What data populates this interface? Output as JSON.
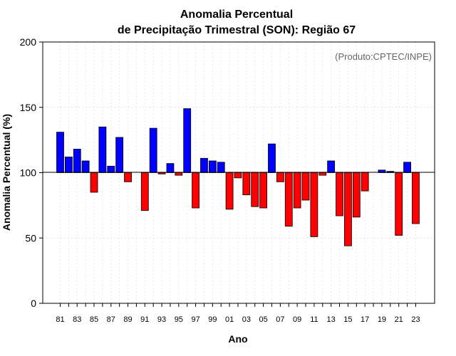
{
  "chart_data": {
    "type": "bar",
    "title_line1": "Anomalia Percentual",
    "title_line2": "de Precipitação Trimestral (SON): Região 67",
    "xlabel": "Ano",
    "ylabel": "Anomalia Percentual (%)",
    "credit": "(Produto:CPTEC/INPE)",
    "baseline": 100,
    "ylim": [
      0,
      200
    ],
    "yticks": [
      "0",
      "50",
      "100",
      "150",
      "200"
    ],
    "above_color": "#0000ff",
    "below_color": "#ff0000",
    "categories": [
      "81",
      "82",
      "83",
      "84",
      "85",
      "86",
      "87",
      "88",
      "89",
      "90",
      "91",
      "92",
      "93",
      "94",
      "95",
      "96",
      "97",
      "98",
      "99",
      "00",
      "01",
      "02",
      "03",
      "04",
      "05",
      "06",
      "07",
      "08",
      "09",
      "10",
      "11",
      "12",
      "13",
      "14",
      "15",
      "16",
      "17",
      "18",
      "19",
      "20",
      "21",
      "22",
      "23"
    ],
    "xtick_labels": [
      "81",
      "83",
      "85",
      "87",
      "89",
      "91",
      "93",
      "95",
      "97",
      "99",
      "01",
      "03",
      "05",
      "07",
      "09",
      "11",
      "13",
      "15",
      "17",
      "19",
      "21",
      "23"
    ],
    "values": [
      131,
      112,
      118,
      109,
      85,
      135,
      105,
      127,
      93,
      100,
      71,
      134,
      99,
      107,
      98,
      149,
      73,
      111,
      109,
      108,
      72,
      96,
      83,
      74,
      73,
      122,
      93,
      59,
      73,
      79,
      51,
      98,
      109,
      67,
      44,
      66,
      86,
      100,
      102,
      101,
      52,
      108,
      61
    ]
  }
}
